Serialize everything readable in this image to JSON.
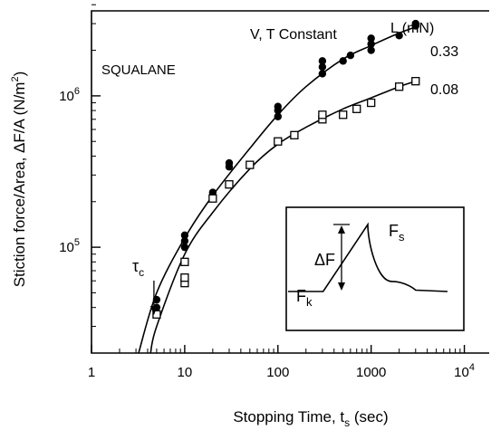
{
  "chart_data": {
    "type": "scatter",
    "xlabel": "Stopping Time, t",
    "xlabel_sub": "s",
    "xlabel_unit": "(sec)",
    "ylabel": "Stiction force/Area, ΔF/A (N/m",
    "ylabel_sup": "2",
    "ylabel_end": ")",
    "xscale": "log",
    "yscale": "log",
    "xlim": [
      1,
      50000
    ],
    "ylim": [
      20000,
      5000000
    ],
    "x_ticks": [
      {
        "value": 1,
        "label": "1"
      },
      {
        "value": 10,
        "label": "10"
      },
      {
        "value": 100,
        "label": "100"
      },
      {
        "value": 1000,
        "label": "1000"
      },
      {
        "value": 10000,
        "label": "10",
        "sup": "4"
      }
    ],
    "y_ticks": [
      {
        "value": 100000,
        "label": "10",
        "sup": "5"
      },
      {
        "value": 1000000,
        "label": "10",
        "sup": "6"
      }
    ],
    "grid": false,
    "annotations": {
      "squalane": "SQUALANE",
      "conditions": "V, T Constant",
      "load_header": "L (mN)",
      "tau_c": "τ",
      "tau_c_sub": "c",
      "tau_c_x": 5
    },
    "series": [
      {
        "name": "0.33",
        "marker": "filled-circle",
        "points": [
          [
            5,
            40000
          ],
          [
            5,
            45000
          ],
          [
            10,
            100000
          ],
          [
            10,
            110000
          ],
          [
            10,
            120000
          ],
          [
            20,
            230000
          ],
          [
            30,
            340000
          ],
          [
            30,
            360000
          ],
          [
            100,
            730000
          ],
          [
            100,
            800000
          ],
          [
            100,
            850000
          ],
          [
            300,
            1400000
          ],
          [
            300,
            1550000
          ],
          [
            300,
            1700000
          ],
          [
            500,
            1700000
          ],
          [
            600,
            1850000
          ],
          [
            1000,
            2000000
          ],
          [
            1000,
            2200000
          ],
          [
            1000,
            2400000
          ],
          [
            2000,
            2500000
          ],
          [
            3000,
            2900000
          ],
          [
            3000,
            3000000
          ]
        ],
        "fit": [
          [
            3.2,
            20000
          ],
          [
            5,
            50000
          ],
          [
            10,
            115000
          ],
          [
            20,
            220000
          ],
          [
            50,
            450000
          ],
          [
            100,
            750000
          ],
          [
            200,
            1150000
          ],
          [
            500,
            1750000
          ],
          [
            1000,
            2150000
          ],
          [
            2000,
            2600000
          ],
          [
            3000,
            2850000
          ]
        ]
      },
      {
        "name": "0.08",
        "marker": "open-square",
        "points": [
          [
            5,
            36000
          ],
          [
            10,
            58000
          ],
          [
            10,
            63000
          ],
          [
            10,
            80000
          ],
          [
            20,
            210000
          ],
          [
            30,
            260000
          ],
          [
            50,
            350000
          ],
          [
            100,
            500000
          ],
          [
            150,
            550000
          ],
          [
            300,
            700000
          ],
          [
            300,
            750000
          ],
          [
            500,
            750000
          ],
          [
            700,
            820000
          ],
          [
            1000,
            900000
          ],
          [
            2000,
            1150000
          ],
          [
            3000,
            1250000
          ]
        ],
        "fit": [
          [
            4.3,
            20000
          ],
          [
            5,
            30000
          ],
          [
            10,
            90000
          ],
          [
            20,
            170000
          ],
          [
            50,
            330000
          ],
          [
            100,
            480000
          ],
          [
            200,
            620000
          ],
          [
            500,
            820000
          ],
          [
            1000,
            970000
          ],
          [
            2000,
            1150000
          ],
          [
            3000,
            1250000
          ]
        ]
      }
    ],
    "inset": {
      "labels": {
        "fs": "F",
        "fs_sub": "s",
        "fk": "F",
        "fk_sub": "k",
        "delta": "ΔF"
      },
      "curve": [
        [
          0,
          0
        ],
        [
          0.22,
          0
        ],
        [
          0.5,
          1
        ],
        [
          0.56,
          0.45
        ],
        [
          0.65,
          0.15
        ],
        [
          0.8,
          0.02
        ],
        [
          1,
          0
        ]
      ]
    }
  }
}
